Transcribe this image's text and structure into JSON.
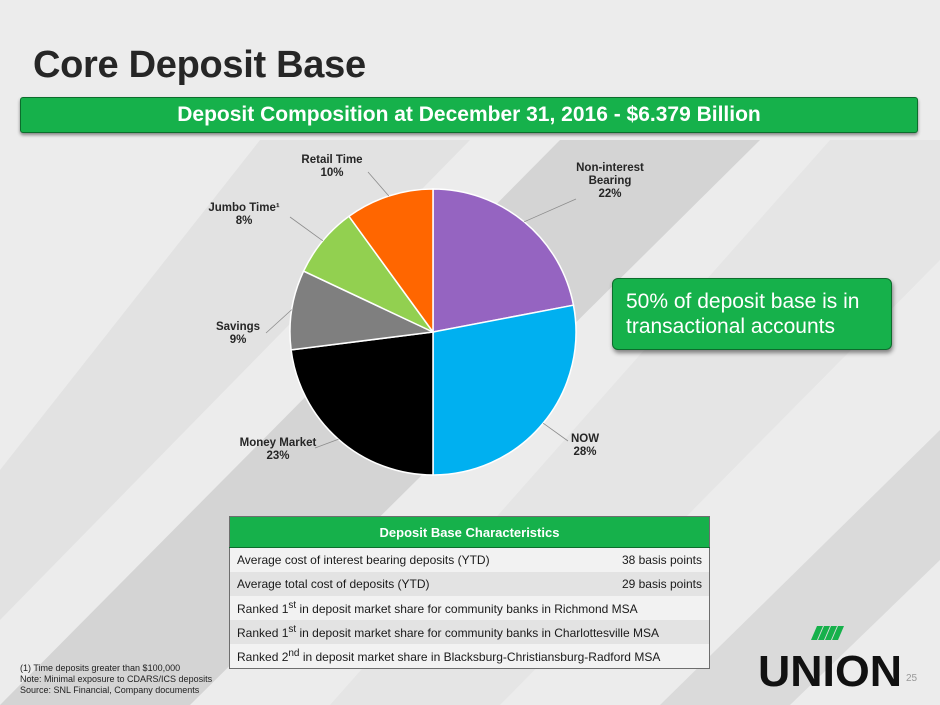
{
  "slide": {
    "title": "Core Deposit Base",
    "banner": "Deposit Composition at December 31, 2016 - $6.379 Billion",
    "callout": "50% of deposit base is in transactional accounts",
    "page_number": "25",
    "logo_text": "UNION"
  },
  "chart_data": {
    "type": "pie",
    "slices": [
      {
        "label": "Non-interest Bearing",
        "value": 22,
        "value_label": "22%",
        "color": "#9564c1"
      },
      {
        "label": "NOW",
        "value": 28,
        "value_label": "28%",
        "color": "#00b0f0"
      },
      {
        "label": "Money Market",
        "value": 23,
        "value_label": "23%",
        "color": "#000000"
      },
      {
        "label": "Savings",
        "value": 9,
        "value_label": "9%",
        "color": "#7f7f7f"
      },
      {
        "label": "Jumbo Time¹",
        "value": 8,
        "value_label": "8%",
        "color": "#92d050"
      },
      {
        "label": "Retail Time",
        "value": 10,
        "value_label": "10%",
        "color": "#ff6600"
      }
    ]
  },
  "table": {
    "header": "Deposit Base Characteristics",
    "rows": [
      {
        "label": "Average cost of interest bearing deposits (YTD)",
        "value": "38 basis points"
      },
      {
        "label": "Average total cost of deposits (YTD)",
        "value": "29 basis points"
      }
    ],
    "rankings": [
      {
        "prefix": "Ranked 1",
        "sup": "st",
        "text": " in deposit market share for community banks in Richmond MSA"
      },
      {
        "prefix": "Ranked 1",
        "sup": "st",
        "text": " in deposit market share for community banks in Charlottesville MSA"
      },
      {
        "prefix": "Ranked 2",
        "sup": "nd",
        "text": " in deposit market share in Blacksburg-Christiansburg-Radford MSA"
      }
    ]
  },
  "footnotes": [
    "(1)    Time deposits greater than $100,000",
    "Note: Minimal exposure to CDARS/ICS deposits",
    "Source: SNL Financial, Company documents"
  ]
}
